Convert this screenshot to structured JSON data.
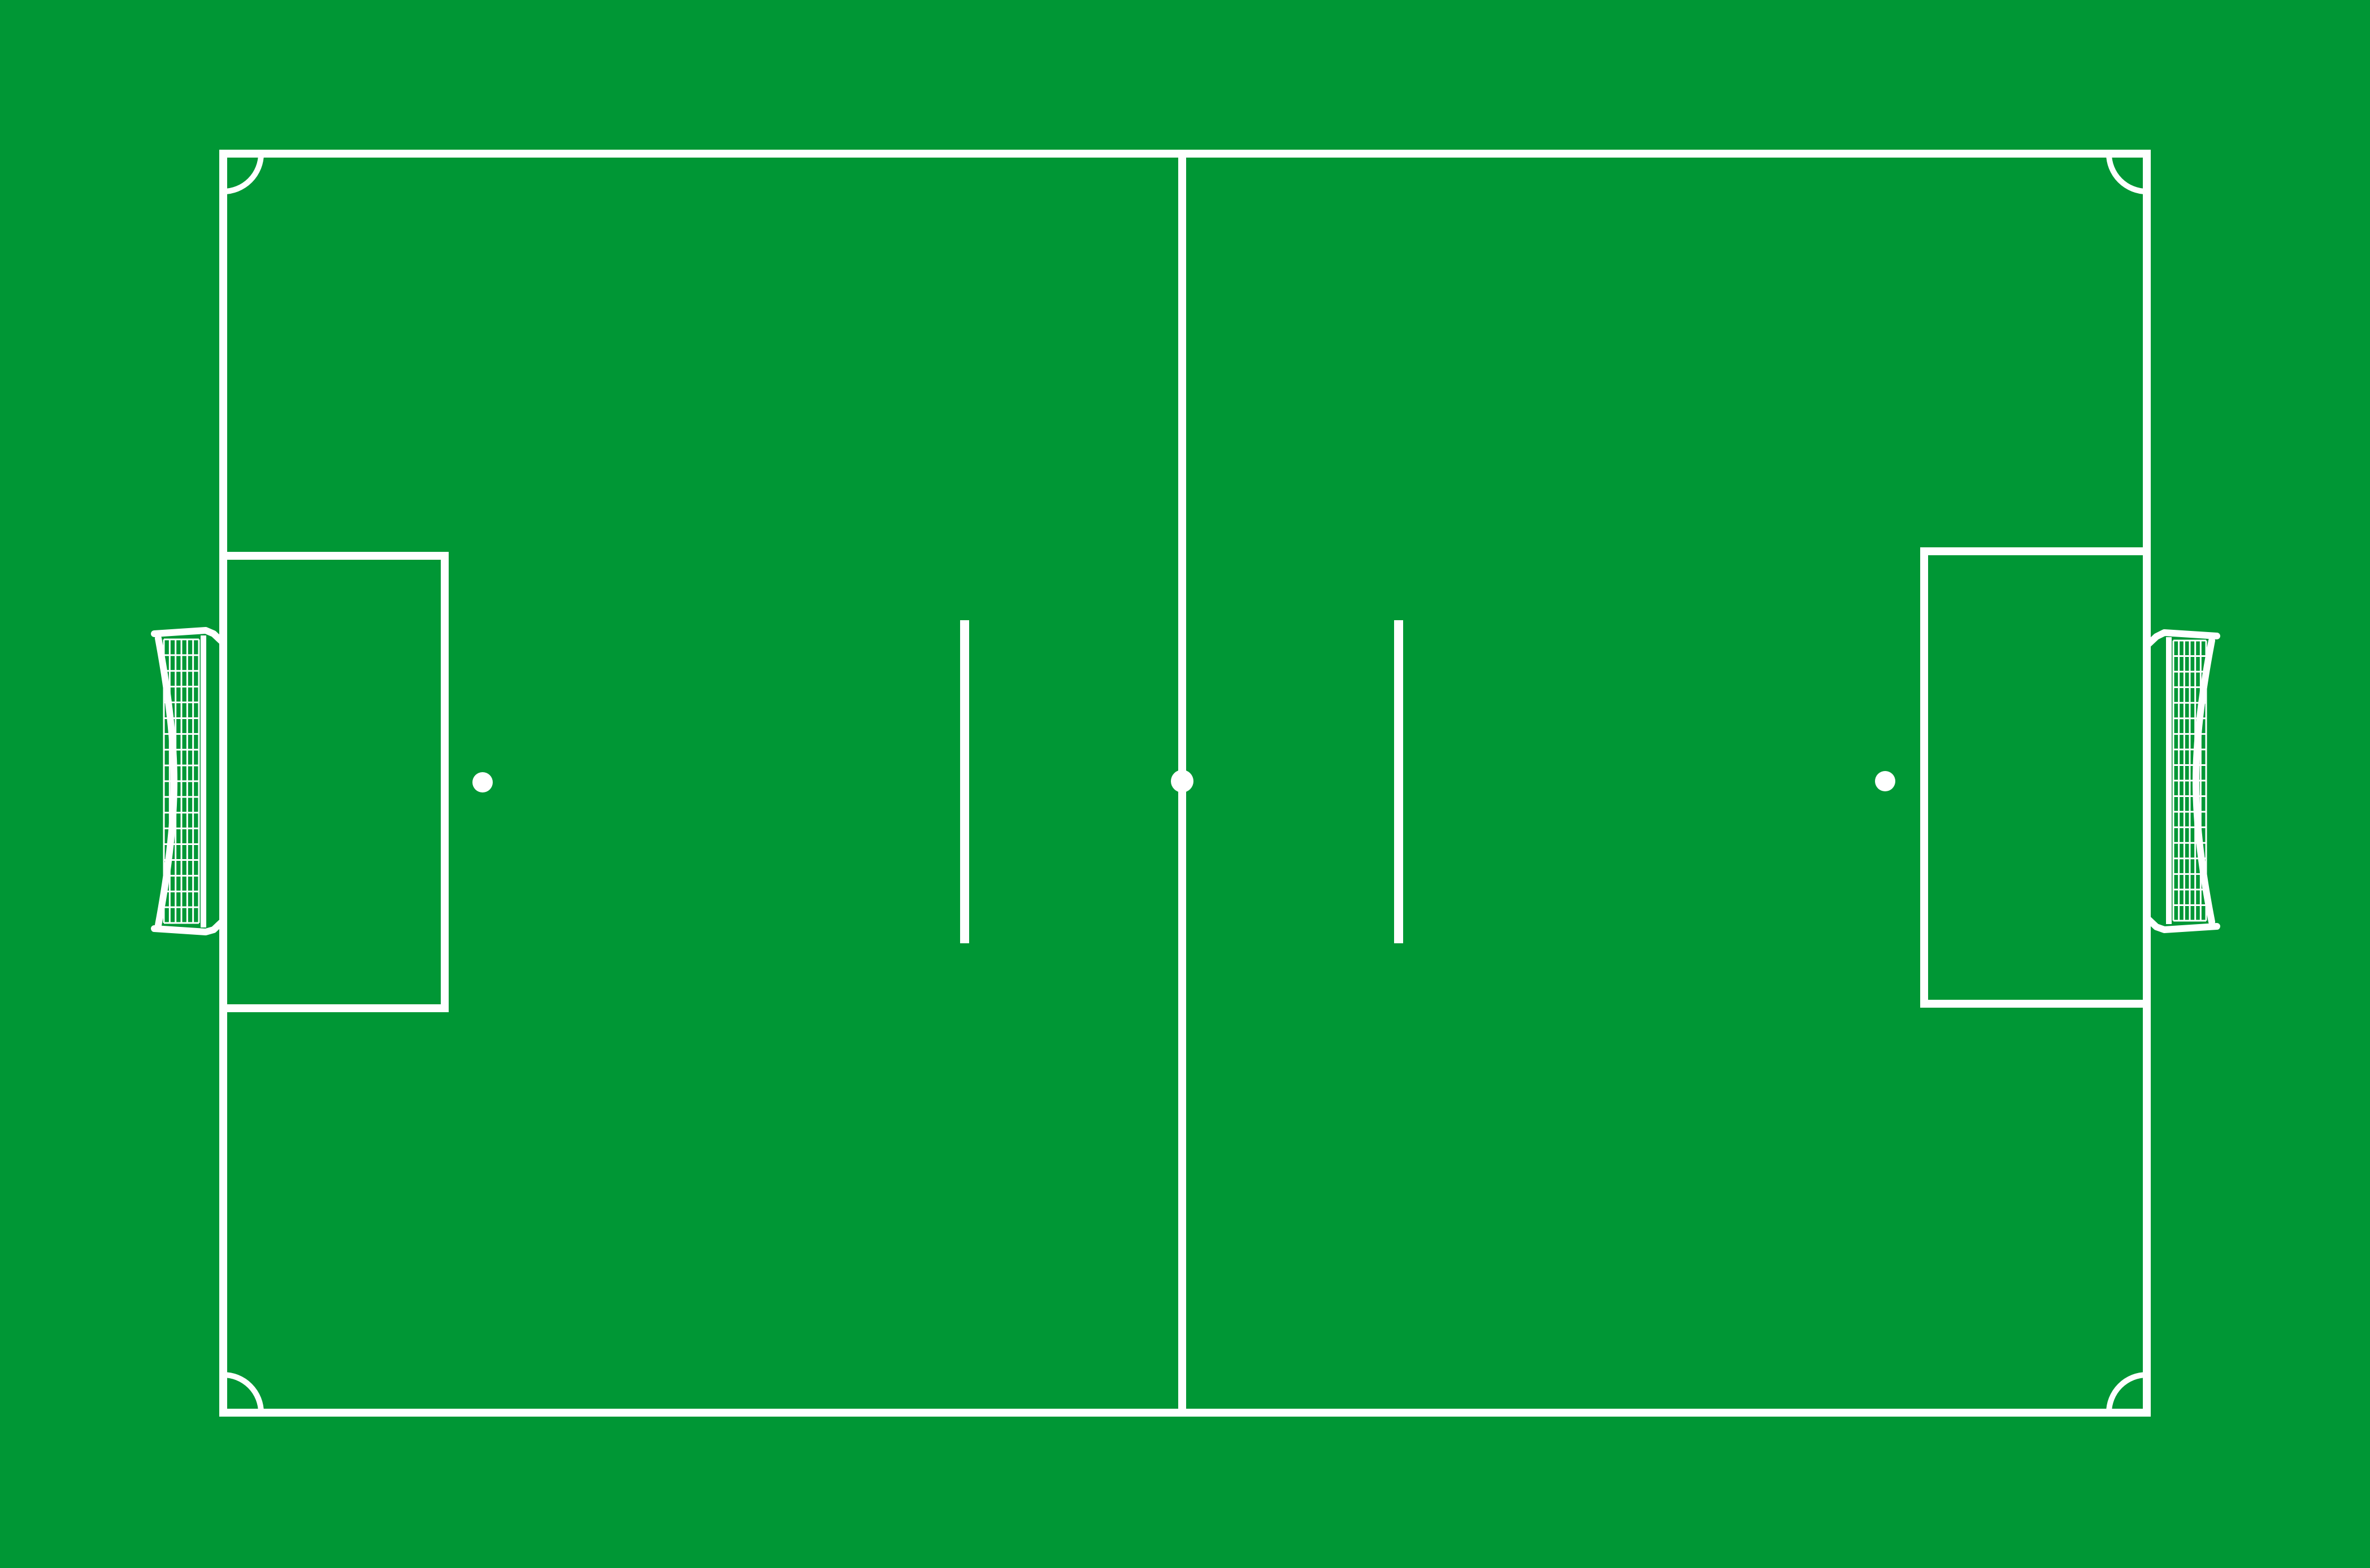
{
  "diagram": {
    "kind": "soccer pitch top-down view",
    "colors": {
      "grass": "#009735",
      "lines": "#ffffff"
    },
    "elements": [
      "touchlines-and-goal-lines",
      "halfway-line",
      "center-spot",
      "left-penalty-area",
      "right-penalty-area",
      "left-penalty-spot",
      "right-penalty-spot",
      "left-restart-mark",
      "right-restart-mark",
      "corner-arcs",
      "left-goal",
      "right-goal"
    ]
  }
}
